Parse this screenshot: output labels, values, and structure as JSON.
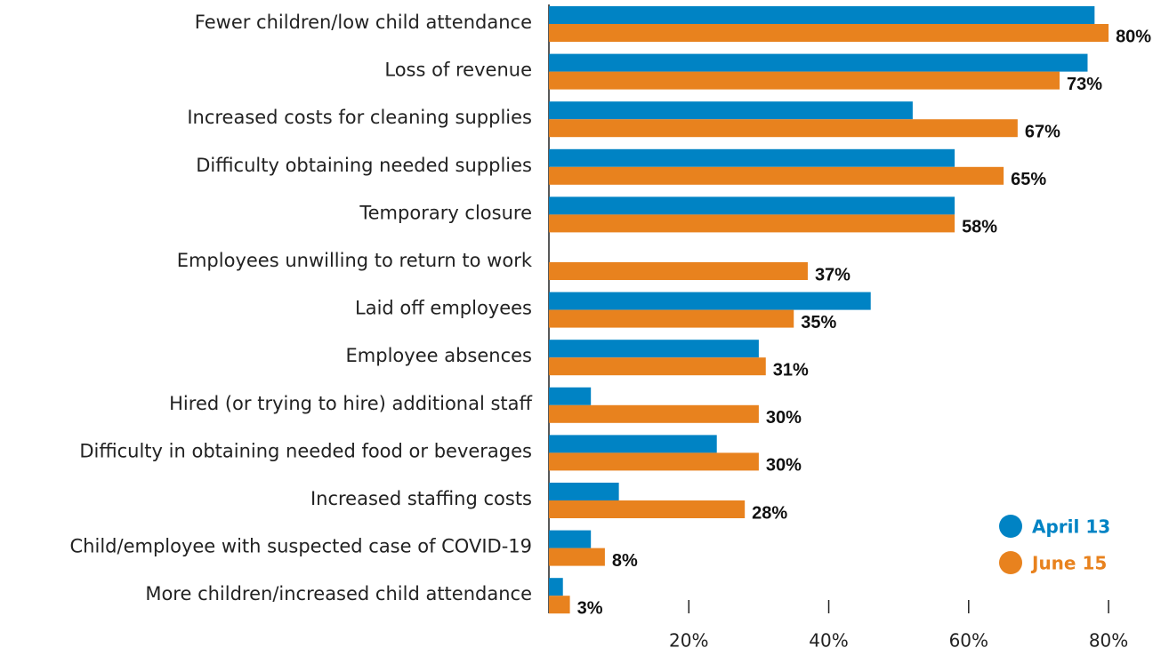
{
  "chart_data": {
    "type": "hbar",
    "categories": [
      "Fewer children/low child attendance",
      "Loss of revenue",
      "Increased costs for cleaning supplies",
      "Difficulty obtaining needed supplies",
      "Temporary closure",
      "Employees unwilling to return to work",
      "Laid off employees",
      "Employee absences",
      "Hired (or trying to hire) additional staff",
      "Difficulty in obtaining needed food or beverages",
      "Increased staffing costs",
      "Child/employee with suspected case of COVID-19",
      "More children/increased child attendance"
    ],
    "series": [
      {
        "name": "April 13",
        "color": "#0083c4",
        "values": [
          78,
          77,
          52,
          58,
          58,
          null,
          46,
          30,
          6,
          24,
          10,
          6,
          2
        ]
      },
      {
        "name": "June 15",
        "color": "#e8821e",
        "values": [
          80,
          73,
          67,
          65,
          58,
          37,
          35,
          31,
          30,
          30,
          28,
          8,
          3
        ],
        "value_labels": [
          "80%",
          "73%",
          "67%",
          "65%",
          "58%",
          "37%",
          "35%",
          "31%",
          "30%",
          "30%",
          "28%",
          "8%",
          "3%"
        ]
      }
    ],
    "xlim": [
      0,
      80.5
    ],
    "xticks": [
      {
        "value": 20,
        "label": "20%"
      },
      {
        "value": 40,
        "label": "40%"
      },
      {
        "value": 60,
        "label": "60%"
      },
      {
        "value": 80,
        "label": "80%"
      }
    ],
    "legend": "lower right"
  }
}
